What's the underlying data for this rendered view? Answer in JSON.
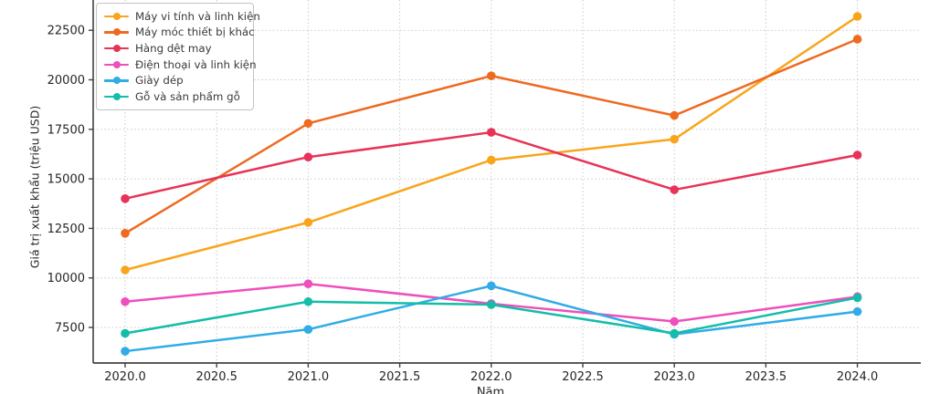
{
  "chart_data": {
    "type": "line",
    "title": "",
    "xlabel": "Năm",
    "ylabel": "Giá trị xuất khẩu (triệu USD)",
    "x": [
      2020,
      2021,
      2022,
      2023,
      2024
    ],
    "x_ticks": [
      2020.0,
      2020.5,
      2021.0,
      2021.5,
      2022.0,
      2022.5,
      2023.0,
      2023.5,
      2024.0
    ],
    "x_tick_labels": [
      "2020.0",
      "2020.5",
      "2021.0",
      "2021.5",
      "2022.0",
      "2022.5",
      "2023.0",
      "2023.5",
      "2024.0"
    ],
    "y_ticks": [
      7500,
      10000,
      12500,
      15000,
      17500,
      20000,
      22500
    ],
    "y_tick_labels": [
      "7500",
      "10000",
      "12500",
      "15000",
      "17500",
      "20000",
      "22500"
    ],
    "ylim": [
      5700,
      24000
    ],
    "xlim": [
      2019.82,
      2024.35
    ],
    "grid": true,
    "legend_position": "upper left",
    "series": [
      {
        "name": "Máy vi tính và linh kiện",
        "color": "#F9A51B",
        "values": [
          10400,
          12800,
          15950,
          17000,
          23200
        ]
      },
      {
        "name": "Máy móc thiết bị khác",
        "color": "#EE6A21",
        "values": [
          12250,
          17800,
          20200,
          18200,
          22050
        ]
      },
      {
        "name": "Hàng dệt may",
        "color": "#E73358",
        "values": [
          14000,
          16100,
          17350,
          14450,
          16200
        ]
      },
      {
        "name": "Điện thoại và linh kiện",
        "color": "#EE4FBC",
        "values": [
          8800,
          9700,
          8700,
          7800,
          9050
        ]
      },
      {
        "name": "Giày dép",
        "color": "#31ACE6",
        "values": [
          6300,
          7400,
          9600,
          7150,
          8300
        ]
      },
      {
        "name": "Gỗ và sản phẩm gỗ",
        "color": "#13BDA8",
        "values": [
          7200,
          8800,
          8650,
          7200,
          9000
        ]
      }
    ],
    "style": {
      "grid_color": "#c9c9c9",
      "spine_color": "#424242",
      "tick_label_color": "#262626",
      "background": "#ffffff"
    }
  }
}
